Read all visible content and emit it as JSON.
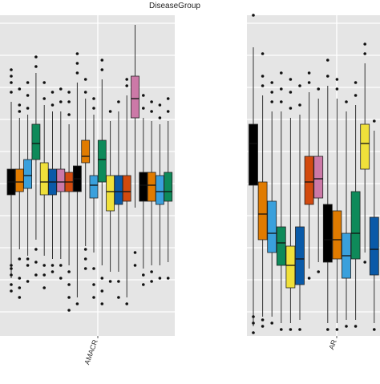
{
  "chart_data": {
    "type": "boxplot",
    "title": "DiseaseGroup",
    "xlabel": "",
    "ylabel": "",
    "categories": [
      "AMACR",
      "AR"
    ],
    "grid": true,
    "legend": "none",
    "colors": {
      "panel_bg": "#e5e5e5",
      "grid": "#ffffff",
      "series": [
        "#000000",
        "#e07b00",
        "#3aa0dc",
        "#0e8a5a",
        "#efe03a",
        "#0a5aa8",
        "#d24a0e",
        "#cc79a7"
      ]
    },
    "groups": [
      {
        "category": "AMACR",
        "boxes": [
          {
            "color": "#000000",
            "q1": 0.44,
            "median": 0.48,
            "q3": 0.52,
            "whisker_low": 0.18,
            "whisker_high": 0.73,
            "outliers": [
              0.14,
              0.16,
              0.19,
              0.21,
              0.22,
              0.76,
              0.79,
              0.81,
              0.83
            ]
          },
          {
            "color": "#e07b00",
            "q1": 0.45,
            "median": 0.48,
            "q3": 0.52,
            "whisker_low": 0.27,
            "whisker_high": 0.68,
            "outliers": [
              0.12,
              0.15,
              0.18,
              0.24,
              0.7,
              0.72,
              0.77
            ]
          },
          {
            "color": "#3aa0dc",
            "q1": 0.46,
            "median": 0.5,
            "q3": 0.55,
            "whisker_low": 0.25,
            "whisker_high": 0.69,
            "outliers": [
              0.17,
              0.22,
              0.24,
              0.71,
              0.75,
              0.79
            ]
          },
          {
            "color": "#0e8a5a",
            "q1": 0.55,
            "median": 0.6,
            "q3": 0.66,
            "whisker_low": 0.3,
            "whisker_high": 0.82,
            "outliers": [
              0.19,
              0.23,
              0.27,
              0.84,
              0.87
            ]
          },
          {
            "color": "#efe03a",
            "q1": 0.44,
            "median": 0.48,
            "q3": 0.54,
            "whisker_low": 0.25,
            "whisker_high": 0.72,
            "outliers": [
              0.15,
              0.19,
              0.22,
              0.74,
              0.79
            ]
          },
          {
            "color": "#0a5aa8",
            "q1": 0.44,
            "median": 0.48,
            "q3": 0.52,
            "whisker_low": 0.24,
            "whisker_high": 0.7,
            "outliers": [
              0.2,
              0.22,
              0.72,
              0.76
            ]
          },
          {
            "color": "#cc79a7",
            "q1": 0.45,
            "median": 0.48,
            "q3": 0.52,
            "whisker_low": 0.24,
            "whisker_high": 0.7,
            "outliers": [
              0.18,
              0.22,
              0.73,
              0.77
            ]
          },
          {
            "color": "#d24a0e",
            "q1": 0.45,
            "median": 0.48,
            "q3": 0.51,
            "whisker_low": 0.22,
            "whisker_high": 0.66,
            "outliers": [
              0.08,
              0.12,
              0.16,
              0.2,
              0.69,
              0.73,
              0.76
            ]
          },
          {
            "color": "#000000",
            "q1": 0.45,
            "median": 0.49,
            "q3": 0.53,
            "whisker_low": 0.12,
            "whisker_high": 0.79,
            "outliers": [
              0.1,
              0.82,
              0.85,
              0.88
            ]
          },
          {
            "color": "#e07b00",
            "q1": 0.54,
            "median": 0.56,
            "q3": 0.61,
            "whisker_low": 0.28,
            "whisker_high": 0.74,
            "outliers": [
              0.21,
              0.24,
              0.27,
              0.76,
              0.8
            ]
          },
          {
            "color": "#3aa0dc",
            "q1": 0.43,
            "median": 0.47,
            "q3": 0.5,
            "whisker_low": 0.26,
            "whisker_high": 0.69,
            "outliers": [
              0.12,
              0.16,
              0.21,
              0.71,
              0.74
            ]
          },
          {
            "color": "#0e8a5a",
            "q1": 0.48,
            "median": 0.55,
            "q3": 0.61,
            "whisker_low": 0.22,
            "whisker_high": 0.8,
            "outliers": [
              0.1,
              0.14,
              0.18,
              0.83,
              0.86
            ]
          },
          {
            "color": "#efe03a",
            "q1": 0.39,
            "median": 0.45,
            "q3": 0.5,
            "whisker_low": 0.2,
            "whisker_high": 0.67,
            "outliers": [
              0.17,
              0.7
            ]
          },
          {
            "color": "#0a5aa8",
            "q1": 0.41,
            "median": 0.45,
            "q3": 0.5,
            "whisker_low": 0.2,
            "whisker_high": 0.7,
            "outliers": [
              0.12,
              0.17,
              0.73
            ]
          },
          {
            "color": "#d24a0e",
            "q1": 0.42,
            "median": 0.45,
            "q3": 0.5,
            "whisker_low": 0.12,
            "whisker_high": 0.75,
            "outliers": [
              0.1,
              0.78,
              0.8
            ]
          },
          {
            "color": "#cc79a7",
            "q1": 0.68,
            "median": 0.74,
            "q3": 0.81,
            "whisker_low": 0.4,
            "whisker_high": 0.97,
            "outliers": [
              0.22,
              0.26
            ]
          },
          {
            "color": "#000000",
            "q1": 0.42,
            "median": 0.47,
            "q3": 0.51,
            "whisker_low": 0.21,
            "whisker_high": 0.68,
            "outliers": [
              0.16,
              0.19,
              0.71,
              0.75
            ]
          },
          {
            "color": "#e07b00",
            "q1": 0.42,
            "median": 0.47,
            "q3": 0.51,
            "whisker_low": 0.22,
            "whisker_high": 0.67,
            "outliers": [
              0.17,
              0.2,
              0.7,
              0.73
            ]
          },
          {
            "color": "#3aa0dc",
            "q1": 0.41,
            "median": 0.45,
            "q3": 0.5,
            "whisker_low": 0.22,
            "whisker_high": 0.66,
            "outliers": [
              0.18,
              0.68,
              0.72
            ]
          },
          {
            "color": "#0e8a5a",
            "q1": 0.42,
            "median": 0.45,
            "q3": 0.51,
            "whisker_low": 0.23,
            "whisker_high": 0.67,
            "outliers": [
              0.18,
              0.7,
              0.74
            ]
          }
        ]
      },
      {
        "category": "AR",
        "boxes": [
          {
            "color": "#000000",
            "q1": 0.47,
            "median": 0.6,
            "q3": 0.66,
            "whisker_low": 0.03,
            "whisker_high": 0.9,
            "outliers": [
              0.01,
              0.04,
              0.06,
              1.0
            ]
          },
          {
            "color": "#e07b00",
            "q1": 0.3,
            "median": 0.38,
            "q3": 0.48,
            "whisker_low": 0.06,
            "whisker_high": 0.75,
            "outliers": [
              0.03,
              0.05,
              0.78,
              0.81,
              0.88
            ]
          },
          {
            "color": "#3aa0dc",
            "q1": 0.26,
            "median": 0.32,
            "q3": 0.42,
            "whisker_low": 0.06,
            "whisker_high": 0.7,
            "outliers": [
              0.04,
              0.73,
              0.76,
              0.79
            ]
          },
          {
            "color": "#0e8a5a",
            "q1": 0.22,
            "median": 0.29,
            "q3": 0.34,
            "whisker_low": 0.04,
            "whisker_high": 0.7,
            "outliers": [
              0.02,
              0.73,
              0.77,
              0.82
            ]
          },
          {
            "color": "#efe03a",
            "q1": 0.15,
            "median": 0.22,
            "q3": 0.28,
            "whisker_low": 0.04,
            "whisker_high": 0.68,
            "outliers": [
              0.02,
              0.71,
              0.76,
              0.8
            ]
          },
          {
            "color": "#0a5aa8",
            "q1": 0.16,
            "median": 0.24,
            "q3": 0.34,
            "whisker_low": 0.05,
            "whisker_high": 0.69,
            "outliers": [
              0.02,
              0.72,
              0.78
            ]
          },
          {
            "color": "#d24a0e",
            "q1": 0.41,
            "median": 0.48,
            "q3": 0.56,
            "whisker_low": 0.21,
            "whisker_high": 0.76,
            "outliers": [
              0.18,
              0.79,
              0.82
            ]
          },
          {
            "color": "#cc79a7",
            "q1": 0.43,
            "median": 0.49,
            "q3": 0.56,
            "whisker_low": 0.23,
            "whisker_high": 0.74,
            "outliers": [
              0.2,
              0.77
            ]
          },
          {
            "color": "#000000",
            "q1": 0.23,
            "median": 0.3,
            "q3": 0.41,
            "whisker_low": 0.04,
            "whisker_high": 0.78,
            "outliers": [
              0.02,
              0.81,
              0.86
            ]
          },
          {
            "color": "#e07b00",
            "q1": 0.24,
            "median": 0.3,
            "q3": 0.39,
            "whisker_low": 0.04,
            "whisker_high": 0.74,
            "outliers": [
              0.02,
              0.77,
              0.8
            ]
          },
          {
            "color": "#3aa0dc",
            "q1": 0.18,
            "median": 0.25,
            "q3": 0.32,
            "whisker_low": 0.05,
            "whisker_high": 0.7,
            "outliers": [
              0.03,
              0.73
            ]
          },
          {
            "color": "#0e8a5a",
            "q1": 0.24,
            "median": 0.32,
            "q3": 0.45,
            "whisker_low": 0.05,
            "whisker_high": 0.72,
            "outliers": [
              0.03,
              0.75,
              0.79
            ]
          },
          {
            "color": "#efe03a",
            "q1": 0.52,
            "median": 0.6,
            "q3": 0.66,
            "whisker_low": 0.26,
            "whisker_high": 0.85,
            "outliers": [
              0.23,
              0.88,
              0.91
            ]
          },
          {
            "color": "#0a5aa8",
            "q1": 0.19,
            "median": 0.27,
            "q3": 0.37,
            "whisker_low": 0.04,
            "whisker_high": 0.64,
            "outliers": [
              0.02,
              0.67
            ]
          }
        ]
      }
    ]
  }
}
